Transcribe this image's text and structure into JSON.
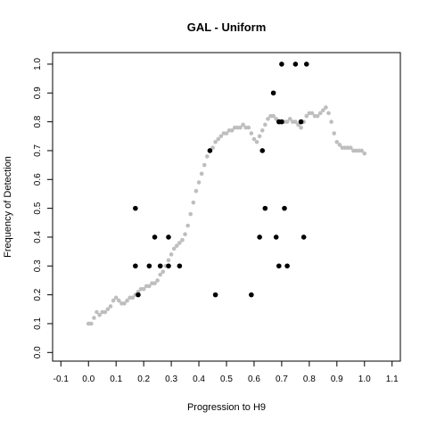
{
  "chart_data": {
    "type": "scatter",
    "title": "GAL - Uniform",
    "xlabel": "Progression to H9",
    "ylabel": "Frequency of Detection",
    "xlim": [
      -0.13,
      1.13
    ],
    "ylim": [
      -0.03,
      1.04
    ],
    "x_ticks": [
      "-0.1",
      "0.0",
      "0.1",
      "0.2",
      "0.3",
      "0.4",
      "0.5",
      "0.6",
      "0.7",
      "0.8",
      "0.9",
      "1.0",
      "1.1"
    ],
    "y_ticks": [
      "0.0",
      "0.1",
      "0.2",
      "0.3",
      "0.4",
      "0.5",
      "0.6",
      "0.7",
      "0.8",
      "0.9",
      "1.0"
    ],
    "grid": false,
    "legend": "none",
    "series": [
      {
        "color": "#bebebe",
        "marker": "dot-small",
        "x": [
          0.0,
          0.01,
          0.02,
          0.03,
          0.04,
          0.05,
          0.06,
          0.07,
          0.08,
          0.09,
          0.1,
          0.11,
          0.12,
          0.13,
          0.14,
          0.15,
          0.16,
          0.17,
          0.18,
          0.19,
          0.2,
          0.21,
          0.22,
          0.23,
          0.24,
          0.25,
          0.26,
          0.27,
          0.28,
          0.29,
          0.3,
          0.31,
          0.32,
          0.33,
          0.34,
          0.35,
          0.36,
          0.37,
          0.38,
          0.39,
          0.4,
          0.41,
          0.42,
          0.43,
          0.44,
          0.45,
          0.46,
          0.47,
          0.48,
          0.49,
          0.5,
          0.51,
          0.52,
          0.53,
          0.54,
          0.55,
          0.56,
          0.57,
          0.58,
          0.59,
          0.6,
          0.61,
          0.62,
          0.63,
          0.64,
          0.65,
          0.66,
          0.67,
          0.68,
          0.69,
          0.7,
          0.71,
          0.72,
          0.73,
          0.74,
          0.75,
          0.76,
          0.77,
          0.78,
          0.79,
          0.8,
          0.81,
          0.82,
          0.83,
          0.84,
          0.85,
          0.86,
          0.87,
          0.88,
          0.89,
          0.9,
          0.91,
          0.92,
          0.93,
          0.94,
          0.95,
          0.96,
          0.97,
          0.98,
          0.99,
          1.0
        ],
        "y": [
          0.1,
          0.1,
          0.12,
          0.14,
          0.13,
          0.14,
          0.14,
          0.15,
          0.16,
          0.18,
          0.19,
          0.18,
          0.17,
          0.17,
          0.18,
          0.19,
          0.19,
          0.2,
          0.21,
          0.22,
          0.22,
          0.23,
          0.23,
          0.24,
          0.24,
          0.25,
          0.27,
          0.28,
          0.3,
          0.32,
          0.34,
          0.36,
          0.37,
          0.38,
          0.39,
          0.41,
          0.44,
          0.48,
          0.52,
          0.56,
          0.59,
          0.62,
          0.65,
          0.68,
          0.7,
          0.71,
          0.73,
          0.74,
          0.75,
          0.76,
          0.76,
          0.77,
          0.77,
          0.78,
          0.78,
          0.78,
          0.79,
          0.78,
          0.78,
          0.76,
          0.74,
          0.73,
          0.75,
          0.77,
          0.79,
          0.81,
          0.82,
          0.82,
          0.81,
          0.8,
          0.8,
          0.8,
          0.8,
          0.81,
          0.8,
          0.8,
          0.79,
          0.78,
          0.8,
          0.82,
          0.83,
          0.83,
          0.82,
          0.82,
          0.83,
          0.84,
          0.85,
          0.83,
          0.8,
          0.76,
          0.73,
          0.72,
          0.71,
          0.71,
          0.71,
          0.71,
          0.7,
          0.7,
          0.7,
          0.7,
          0.69
        ]
      },
      {
        "color": "#000000",
        "marker": "dot-large",
        "x": [
          0.17,
          0.17,
          0.18,
          0.22,
          0.24,
          0.26,
          0.29,
          0.29,
          0.33,
          0.44,
          0.46,
          0.59,
          0.62,
          0.63,
          0.64,
          0.67,
          0.68,
          0.69,
          0.69,
          0.7,
          0.7,
          0.71,
          0.72,
          0.75,
          0.77,
          0.78,
          0.79
        ],
        "y": [
          0.5,
          0.3,
          0.2,
          0.3,
          0.4,
          0.3,
          0.4,
          0.3,
          0.3,
          0.7,
          0.2,
          0.2,
          0.4,
          0.7,
          0.5,
          0.9,
          0.4,
          0.8,
          0.3,
          0.8,
          1.0,
          0.5,
          0.3,
          1.0,
          0.8,
          0.4,
          1.0
        ]
      }
    ]
  }
}
